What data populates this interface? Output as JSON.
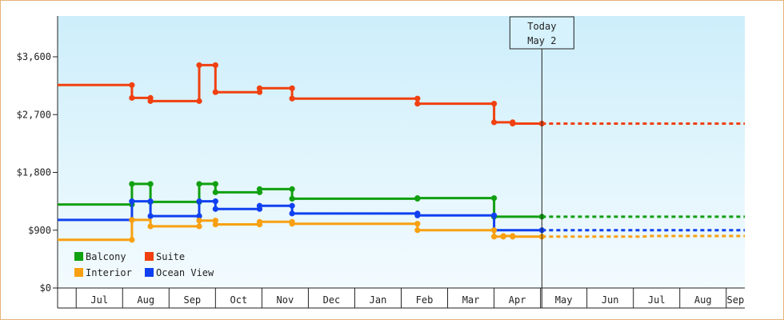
{
  "chart_data": {
    "type": "line",
    "title": "",
    "xlabel": "",
    "ylabel": "",
    "ylim": [
      0,
      3600
    ],
    "y_ticks": [
      {
        "value": 0,
        "label": "$0"
      },
      {
        "value": 900,
        "label": "$900"
      },
      {
        "value": 1800,
        "label": "$1,800"
      },
      {
        "value": 2700,
        "label": "$2,700"
      },
      {
        "value": 3600,
        "label": "$3,600"
      }
    ],
    "x_months": [
      "Jul",
      "Aug",
      "Sep",
      "Oct",
      "Nov",
      "Dec",
      "Jan",
      "Feb",
      "Mar",
      "Apr",
      "May",
      "Jun",
      "Jul",
      "Aug",
      "Sep"
    ],
    "x_month_start_index": 6,
    "x_range_months": [
      5.6,
      20.4
    ],
    "today_month": 16.03,
    "today_label_line1": "Today",
    "today_label_line2": "May 2",
    "grid": false,
    "legend_position": "bottom-left",
    "series": [
      {
        "name": "Suite",
        "color": "#f04010",
        "points": [
          [
            5.6,
            3160
          ],
          [
            7.2,
            3160
          ],
          [
            7.2,
            2960
          ],
          [
            7.6,
            2960
          ],
          [
            7.6,
            2910
          ],
          [
            8.65,
            2910
          ],
          [
            8.65,
            3470
          ],
          [
            9.0,
            3470
          ],
          [
            9.0,
            3050
          ],
          [
            9.95,
            3050
          ],
          [
            9.95,
            3110
          ],
          [
            10.65,
            3110
          ],
          [
            10.65,
            2950
          ],
          [
            13.35,
            2950
          ],
          [
            13.35,
            2870
          ],
          [
            15.0,
            2870
          ],
          [
            15.0,
            2580
          ],
          [
            15.4,
            2580
          ],
          [
            15.4,
            2560
          ],
          [
            16.03,
            2560
          ]
        ],
        "markers": [
          [
            7.2,
            3160
          ],
          [
            7.2,
            2960
          ],
          [
            7.6,
            2960
          ],
          [
            7.6,
            2910
          ],
          [
            8.65,
            2910
          ],
          [
            8.65,
            3470
          ],
          [
            9.0,
            3470
          ],
          [
            9.0,
            3050
          ],
          [
            9.95,
            3050
          ],
          [
            9.95,
            3110
          ],
          [
            10.65,
            3110
          ],
          [
            10.65,
            2950
          ],
          [
            13.35,
            2950
          ],
          [
            13.35,
            2870
          ],
          [
            15.0,
            2870
          ],
          [
            15.0,
            2580
          ],
          [
            15.4,
            2580
          ],
          [
            15.4,
            2560
          ],
          [
            16.03,
            2560
          ]
        ],
        "forecast": [
          [
            16.03,
            2560
          ],
          [
            20.4,
            2560
          ]
        ]
      },
      {
        "name": "Balcony",
        "color": "#10a010",
        "points": [
          [
            5.6,
            1300
          ],
          [
            7.2,
            1300
          ],
          [
            7.2,
            1620
          ],
          [
            7.6,
            1620
          ],
          [
            7.6,
            1340
          ],
          [
            8.65,
            1340
          ],
          [
            8.65,
            1620
          ],
          [
            9.0,
            1620
          ],
          [
            9.0,
            1490
          ],
          [
            9.95,
            1490
          ],
          [
            9.95,
            1540
          ],
          [
            10.65,
            1540
          ],
          [
            10.65,
            1390
          ],
          [
            13.35,
            1390
          ],
          [
            13.35,
            1400
          ],
          [
            15.0,
            1400
          ],
          [
            15.0,
            1110
          ],
          [
            16.03,
            1110
          ]
        ],
        "markers": [
          [
            7.2,
            1300
          ],
          [
            7.2,
            1620
          ],
          [
            7.6,
            1620
          ],
          [
            7.6,
            1340
          ],
          [
            8.65,
            1340
          ],
          [
            8.65,
            1620
          ],
          [
            9.0,
            1620
          ],
          [
            9.0,
            1490
          ],
          [
            9.95,
            1490
          ],
          [
            9.95,
            1540
          ],
          [
            10.65,
            1540
          ],
          [
            10.65,
            1390
          ],
          [
            13.35,
            1390
          ],
          [
            13.35,
            1400
          ],
          [
            15.0,
            1400
          ],
          [
            15.0,
            1110
          ],
          [
            16.03,
            1110
          ]
        ],
        "forecast": [
          [
            16.03,
            1110
          ],
          [
            20.4,
            1110
          ]
        ]
      },
      {
        "name": "Ocean View",
        "color": "#1040f0",
        "points": [
          [
            5.6,
            1060
          ],
          [
            7.2,
            1060
          ],
          [
            7.2,
            1350
          ],
          [
            7.6,
            1350
          ],
          [
            7.6,
            1120
          ],
          [
            8.65,
            1120
          ],
          [
            8.65,
            1350
          ],
          [
            9.0,
            1350
          ],
          [
            9.0,
            1230
          ],
          [
            9.95,
            1230
          ],
          [
            9.95,
            1280
          ],
          [
            10.65,
            1280
          ],
          [
            10.65,
            1160
          ],
          [
            13.35,
            1160
          ],
          [
            13.35,
            1130
          ],
          [
            15.0,
            1130
          ],
          [
            15.0,
            900
          ],
          [
            16.03,
            900
          ]
        ],
        "markers": [
          [
            7.2,
            1060
          ],
          [
            7.2,
            1350
          ],
          [
            7.6,
            1350
          ],
          [
            7.6,
            1120
          ],
          [
            8.65,
            1120
          ],
          [
            8.65,
            1350
          ],
          [
            9.0,
            1350
          ],
          [
            9.0,
            1230
          ],
          [
            9.95,
            1230
          ],
          [
            9.95,
            1280
          ],
          [
            10.65,
            1280
          ],
          [
            10.65,
            1160
          ],
          [
            13.35,
            1160
          ],
          [
            13.35,
            1130
          ],
          [
            15.0,
            1130
          ],
          [
            15.0,
            900
          ],
          [
            16.03,
            900
          ]
        ],
        "forecast": [
          [
            16.03,
            900
          ],
          [
            20.4,
            900
          ]
        ]
      },
      {
        "name": "Interior",
        "color": "#f8a010",
        "points": [
          [
            5.6,
            750
          ],
          [
            7.2,
            750
          ],
          [
            7.2,
            1060
          ],
          [
            7.6,
            1060
          ],
          [
            7.6,
            960
          ],
          [
            8.65,
            960
          ],
          [
            8.65,
            1050
          ],
          [
            9.0,
            1050
          ],
          [
            9.0,
            990
          ],
          [
            9.95,
            990
          ],
          [
            9.95,
            1030
          ],
          [
            10.65,
            1030
          ],
          [
            10.65,
            1000
          ],
          [
            13.35,
            1000
          ],
          [
            13.35,
            900
          ],
          [
            15.0,
            900
          ],
          [
            15.0,
            800
          ],
          [
            15.2,
            800
          ],
          [
            15.2,
            810
          ],
          [
            15.4,
            810
          ],
          [
            15.4,
            800
          ],
          [
            16.03,
            800
          ]
        ],
        "markers": [
          [
            7.2,
            750
          ],
          [
            7.2,
            1060
          ],
          [
            7.6,
            960
          ],
          [
            8.65,
            960
          ],
          [
            8.65,
            1050
          ],
          [
            9.0,
            1050
          ],
          [
            9.0,
            990
          ],
          [
            9.95,
            990
          ],
          [
            9.95,
            1030
          ],
          [
            10.65,
            1030
          ],
          [
            10.65,
            1000
          ],
          [
            13.35,
            1000
          ],
          [
            13.35,
            900
          ],
          [
            15.0,
            900
          ],
          [
            15.0,
            800
          ],
          [
            15.2,
            800
          ],
          [
            15.2,
            810
          ],
          [
            15.4,
            810
          ],
          [
            15.4,
            800
          ],
          [
            16.03,
            800
          ]
        ],
        "forecast": [
          [
            16.03,
            800
          ],
          [
            18.2,
            800
          ],
          [
            18.35,
            810
          ],
          [
            20.4,
            810
          ]
        ]
      }
    ],
    "legend": [
      "Balcony",
      "Suite",
      "Interior",
      "Ocean View"
    ]
  }
}
